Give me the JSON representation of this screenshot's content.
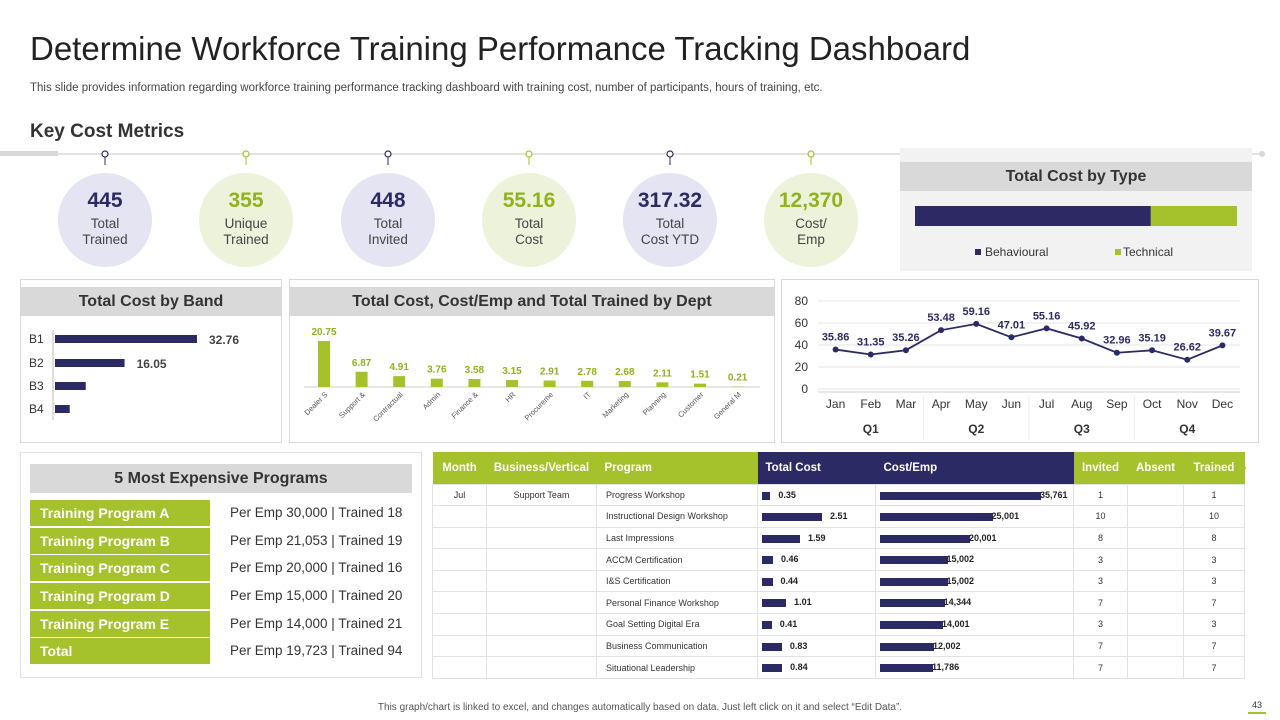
{
  "title": "Determine Workforce Training Performance Tracking Dashboard",
  "subtitle": "This slide provides information regarding workforce training performance tracking dashboard with training cost, number of participants, hours of training, etc.",
  "section_title": "Key Cost Metrics",
  "colors": {
    "navy": "#2b2a64",
    "green": "#a5c12b",
    "grey": "#d9d9d9"
  },
  "metrics": [
    {
      "value": "445",
      "label": "Total\nTrained",
      "theme": "navy"
    },
    {
      "value": "355",
      "label": "Unique\nTrained",
      "theme": "green"
    },
    {
      "value": "448",
      "label": "Total\nInvited",
      "theme": "navy"
    },
    {
      "value": "55.16",
      "label": "Total\nCost",
      "theme": "green"
    },
    {
      "value": "317.32",
      "label": "Total\nCost YTD",
      "theme": "navy"
    },
    {
      "value": "12,370",
      "label": "Cost/\nEmp",
      "theme": "green"
    }
  ],
  "cost_by_type": {
    "title": "Total Cost by Type",
    "legend": [
      "Behavioural",
      "Technical"
    ]
  },
  "cost_by_band": {
    "title": "Total Cost by Band"
  },
  "cost_by_dept": {
    "title": "Total Cost, Cost/Emp and Total Trained by Dept"
  },
  "programs": {
    "title": "5 Most Expensive Programs",
    "rows": [
      {
        "name": "Training Program A",
        "detail": "Per Emp 30,000 | Trained  18"
      },
      {
        "name": "Training Program B",
        "detail": "Per Emp 21,053 | Trained  19"
      },
      {
        "name": "Training Program C",
        "detail": "Per Emp 20,000 | Trained  16"
      },
      {
        "name": "Training Program D",
        "detail": "Per Emp 15,000 | Trained  20"
      },
      {
        "name": "Training Program E",
        "detail": "Per Emp 14,000 | Trained  21"
      },
      {
        "name": "Total",
        "detail": "Per Emp 19,723 | Trained  94"
      }
    ]
  },
  "table": {
    "headers": {
      "month": "Month",
      "business": "Business/Vertical",
      "program": "Program",
      "total_cost": "Total Cost",
      "cost_emp": "Cost/Emp",
      "invited": "Invited",
      "absent": "Absent",
      "trained": "Trained"
    },
    "first_month": "Jul",
    "first_business": "Support Team",
    "rows": [
      {
        "program": "Progress Workshop",
        "total_cost": 0.35,
        "total_cost_label": "0.35",
        "cost_emp": 35761,
        "cost_emp_label": "35,761",
        "invited": "1",
        "absent": "",
        "trained": "1"
      },
      {
        "program": "Instructional Design Workshop",
        "total_cost": 2.51,
        "total_cost_label": "2.51",
        "cost_emp": 25001,
        "cost_emp_label": "25,001",
        "invited": "10",
        "absent": "",
        "trained": "10"
      },
      {
        "program": "Last Impressions",
        "total_cost": 1.59,
        "total_cost_label": "1.59",
        "cost_emp": 20001,
        "cost_emp_label": "20,001",
        "invited": "8",
        "absent": "",
        "trained": "8"
      },
      {
        "program": "ACCM Certification",
        "total_cost": 0.46,
        "total_cost_label": "0.46",
        "cost_emp": 15002,
        "cost_emp_label": "15,002",
        "invited": "3",
        "absent": "",
        "trained": "3"
      },
      {
        "program": "I&S Certification",
        "total_cost": 0.44,
        "total_cost_label": "0.44",
        "cost_emp": 15002,
        "cost_emp_label": "15,002",
        "invited": "3",
        "absent": "",
        "trained": "3"
      },
      {
        "program": "Personal Finance Workshop",
        "total_cost": 1.01,
        "total_cost_label": "1.01",
        "cost_emp": 14344,
        "cost_emp_label": "14,344",
        "invited": "7",
        "absent": "",
        "trained": "7"
      },
      {
        "program": "Goal Setting Digital Era",
        "total_cost": 0.41,
        "total_cost_label": "0.41",
        "cost_emp": 14001,
        "cost_emp_label": "14,001",
        "invited": "3",
        "absent": "",
        "trained": "3"
      },
      {
        "program": "Business Communication",
        "total_cost": 0.83,
        "total_cost_label": "0.83",
        "cost_emp": 12002,
        "cost_emp_label": "12,002",
        "invited": "7",
        "absent": "",
        "trained": "7"
      },
      {
        "program": "Situational Leadership",
        "total_cost": 0.84,
        "total_cost_label": "0.84",
        "cost_emp": 11786,
        "cost_emp_label": "11,786",
        "invited": "7",
        "absent": "",
        "trained": "7"
      }
    ]
  },
  "footer": "This graph/chart is linked to excel, and changes automatically based on data.  Just left click on it and select “Edit Data”.",
  "page_number": "43",
  "chart_data": [
    {
      "type": "bar",
      "orientation": "horizontal",
      "stacked": true,
      "title": "Total Cost by Type",
      "categories": [
        ""
      ],
      "series": [
        {
          "name": "Behavioural",
          "values": [
            40.4
          ]
        },
        {
          "name": "Technical",
          "values": [
            14.76
          ]
        }
      ],
      "legend": "bottom"
    },
    {
      "type": "bar",
      "orientation": "horizontal",
      "title": "Total Cost by Band",
      "categories": [
        "B1",
        "B2",
        "B3",
        "B4"
      ],
      "values": [
        32.76,
        16.05,
        7.1,
        3.4
      ],
      "data_labels": [
        "32.76",
        "16.05",
        "",
        ""
      ]
    },
    {
      "type": "bar",
      "title": "Total Cost, Cost/Emp and Total Trained by Dept",
      "categories": [
        "Dealer S",
        "Support &",
        "Contractual",
        "Admin",
        "Finance &",
        "HR",
        "Procureme",
        "IT",
        "Marketing",
        "Planning",
        "Customer",
        "General M"
      ],
      "values": [
        20.75,
        6.87,
        4.91,
        3.76,
        3.58,
        3.15,
        2.91,
        2.78,
        2.68,
        2.11,
        1.51,
        0.21
      ],
      "data_labels": [
        "20.75",
        "6.87",
        "4.91",
        "3.76",
        "3.58",
        "3.15",
        "2.91",
        "2.78",
        "2.68",
        "2.11",
        "1.51",
        "0.21"
      ]
    },
    {
      "type": "line",
      "title": "",
      "x": [
        "Jan",
        "Feb",
        "Mar",
        "Apr",
        "May",
        "Jun",
        "Jul",
        "Aug",
        "Sep",
        "Oct",
        "Nov",
        "Dec"
      ],
      "quarters": [
        "Q1",
        "Q2",
        "Q3",
        "Q4"
      ],
      "values": [
        35.86,
        31.35,
        35.26,
        53.48,
        59.16,
        47.01,
        55.16,
        45.92,
        32.96,
        35.19,
        26.62,
        39.67
      ],
      "data_labels": [
        "35.86",
        "31.35",
        "35.26",
        "53.48",
        "59.16",
        "47.01",
        "55.16",
        "45.92",
        "32.96",
        "35.19",
        "26.62",
        "39.67"
      ],
      "yticks": [
        "0",
        "20",
        "40",
        "60",
        "80"
      ],
      "ylim": [
        0,
        80
      ],
      "grid": true
    }
  ]
}
